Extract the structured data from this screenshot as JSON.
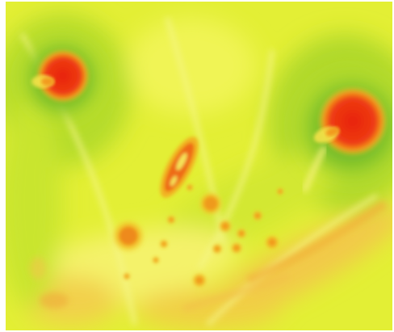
{
  "image": {
    "kind": "false-color fluorescence micrograph",
    "palette": {
      "background_low": "#e9f23b",
      "background_mid": "#cfe82f",
      "halo_dark": "#7fc22a",
      "halo_deep": "#5aa823",
      "hot_orange": "#f29a1c",
      "hot_red": "#ee3b12",
      "hot_core": "#e8230f",
      "pale_yellow": "#f7f77a"
    }
  }
}
